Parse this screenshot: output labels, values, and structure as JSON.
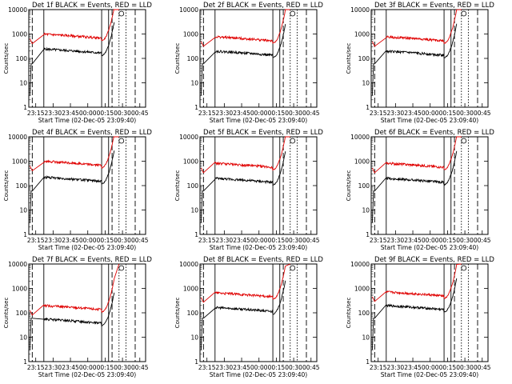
{
  "chart_data": [
    {
      "type": "line",
      "title": "Det 1f BLACK = Events, RED = LLD",
      "xlabel": "Start Time (02-Dec-05 23:09:40)",
      "ylabel": "Counts/sec",
      "x_tick_labels": [
        "23:15",
        "23:30",
        "23:45",
        "00:00",
        "00:15",
        "00:30",
        "00:45"
      ],
      "y_tick_labels": [
        "1",
        "10",
        "100",
        "1000",
        "10000"
      ],
      "ylim": [
        1,
        10000
      ],
      "y_scale": "log",
      "series": [
        {
          "color": "#000000",
          "level": 220
        },
        {
          "color": "#e00000",
          "level": 900
        }
      ],
      "vertical_lines": [
        {
          "x": "23:12",
          "style": "dashed"
        },
        {
          "x": "23:22",
          "style": "solid"
        },
        {
          "x": "00:12",
          "style": "solid"
        },
        {
          "x": "00:18",
          "style": "solid"
        },
        {
          "x": "00:21",
          "style": "dashed"
        },
        {
          "x": "00:27",
          "style": "dotted"
        },
        {
          "x": "00:33",
          "style": "dotted"
        },
        {
          "x": "00:41",
          "style": "dashed"
        }
      ]
    },
    {
      "type": "line",
      "title": "Det 2f BLACK = Events, RED = LLD",
      "xlabel": "Start Time (02-Dec-05 23:09:40)",
      "ylabel": "Counts/sec",
      "x_tick_labels": [
        "23:15",
        "23:30",
        "23:45",
        "00:00",
        "00:15",
        "00:30",
        "00:45"
      ],
      "y_tick_labels": [
        "1",
        "10",
        "100",
        "1000",
        "10000"
      ],
      "ylim": [
        1,
        10000
      ],
      "y_scale": "log",
      "series": [
        {
          "color": "#000000",
          "level": 180
        },
        {
          "color": "#e00000",
          "level": 700
        }
      ],
      "vertical_lines": [
        {
          "x": "23:12",
          "style": "dashed"
        },
        {
          "x": "23:22",
          "style": "solid"
        },
        {
          "x": "00:12",
          "style": "solid"
        },
        {
          "x": "00:18",
          "style": "solid"
        },
        {
          "x": "00:21",
          "style": "dashed"
        },
        {
          "x": "00:27",
          "style": "dotted"
        },
        {
          "x": "00:33",
          "style": "dotted"
        },
        {
          "x": "00:41",
          "style": "dashed"
        }
      ]
    },
    {
      "type": "line",
      "title": "Det 3f BLACK = Events, RED = LLD",
      "xlabel": "Start Time (02-Dec-05 23:09:40)",
      "ylabel": "Counts/sec",
      "x_tick_labels": [
        "23:15",
        "23:30",
        "23:45",
        "00:00",
        "00:15",
        "00:30",
        "00:45"
      ],
      "y_tick_labels": [
        "1",
        "10",
        "100",
        "1000",
        "10000"
      ],
      "ylim": [
        1,
        10000
      ],
      "y_scale": "log",
      "series": [
        {
          "color": "#000000",
          "level": 180
        },
        {
          "color": "#e00000",
          "level": 700
        }
      ],
      "vertical_lines": [
        {
          "x": "23:12",
          "style": "dashed"
        },
        {
          "x": "23:22",
          "style": "solid"
        },
        {
          "x": "00:12",
          "style": "solid"
        },
        {
          "x": "00:18",
          "style": "solid"
        },
        {
          "x": "00:21",
          "style": "dashed"
        },
        {
          "x": "00:27",
          "style": "dotted"
        },
        {
          "x": "00:33",
          "style": "dotted"
        },
        {
          "x": "00:41",
          "style": "dashed"
        }
      ]
    },
    {
      "type": "line",
      "title": "Det 4f BLACK = Events, RED = LLD",
      "xlabel": "Start Time (02-Dec-05 23:09:40)",
      "ylabel": "Counts/sec",
      "x_tick_labels": [
        "23:15",
        "23:30",
        "23:45",
        "00:00",
        "00:15",
        "00:30",
        "00:45"
      ],
      "y_tick_labels": [
        "1",
        "10",
        "100",
        "1000",
        "10000"
      ],
      "ylim": [
        1,
        10000
      ],
      "y_scale": "log",
      "series": [
        {
          "color": "#000000",
          "level": 200
        },
        {
          "color": "#e00000",
          "level": 900
        }
      ],
      "vertical_lines": [
        {
          "x": "23:12",
          "style": "dashed"
        },
        {
          "x": "23:22",
          "style": "solid"
        },
        {
          "x": "00:12",
          "style": "solid"
        },
        {
          "x": "00:18",
          "style": "solid"
        },
        {
          "x": "00:21",
          "style": "dashed"
        },
        {
          "x": "00:27",
          "style": "dotted"
        },
        {
          "x": "00:33",
          "style": "dotted"
        },
        {
          "x": "00:41",
          "style": "dashed"
        }
      ]
    },
    {
      "type": "line",
      "title": "Det 5f BLACK = Events, RED = LLD",
      "xlabel": "Start Time (02-Dec-05 23:09:40)",
      "ylabel": "Counts/sec",
      "x_tick_labels": [
        "23:15",
        "23:30",
        "23:45",
        "00:00",
        "00:15",
        "00:30",
        "00:45"
      ],
      "y_tick_labels": [
        "1",
        "10",
        "100",
        "1000",
        "10000"
      ],
      "ylim": [
        1,
        10000
      ],
      "y_scale": "log",
      "series": [
        {
          "color": "#000000",
          "level": 180
        },
        {
          "color": "#e00000",
          "level": 750
        }
      ],
      "vertical_lines": [
        {
          "x": "23:12",
          "style": "dashed"
        },
        {
          "x": "23:22",
          "style": "solid"
        },
        {
          "x": "00:12",
          "style": "solid"
        },
        {
          "x": "00:18",
          "style": "solid"
        },
        {
          "x": "00:21",
          "style": "dashed"
        },
        {
          "x": "00:27",
          "style": "dotted"
        },
        {
          "x": "00:33",
          "style": "dotted"
        },
        {
          "x": "00:41",
          "style": "dashed"
        }
      ]
    },
    {
      "type": "line",
      "title": "Det 6f BLACK = Events, RED = LLD",
      "xlabel": "Start Time (02-Dec-05 23:09:40)",
      "ylabel": "Counts/sec",
      "x_tick_labels": [
        "23:15",
        "23:30",
        "23:45",
        "00:00",
        "00:15",
        "00:30",
        "00:45"
      ],
      "y_tick_labels": [
        "1",
        "10",
        "100",
        "1000",
        "10000"
      ],
      "ylim": [
        1,
        10000
      ],
      "y_scale": "log",
      "series": [
        {
          "color": "#000000",
          "level": 180
        },
        {
          "color": "#e00000",
          "level": 750
        }
      ],
      "vertical_lines": [
        {
          "x": "23:12",
          "style": "dashed"
        },
        {
          "x": "23:22",
          "style": "solid"
        },
        {
          "x": "00:12",
          "style": "solid"
        },
        {
          "x": "00:18",
          "style": "solid"
        },
        {
          "x": "00:21",
          "style": "dashed"
        },
        {
          "x": "00:27",
          "style": "dotted"
        },
        {
          "x": "00:33",
          "style": "dotted"
        },
        {
          "x": "00:41",
          "style": "dashed"
        }
      ]
    },
    {
      "type": "line",
      "title": "Det 7f BLACK = Events, RED = LLD",
      "xlabel": "Start Time (02-Dec-05 23:09:40)",
      "ylabel": "Counts/sec",
      "x_tick_labels": [
        "23:15",
        "23:30",
        "23:45",
        "00:00",
        "00:15",
        "00:30",
        "00:45"
      ],
      "y_tick_labels": [
        "1",
        "10",
        "100",
        "1000",
        "10000"
      ],
      "ylim": [
        1,
        10000
      ],
      "y_scale": "log",
      "series": [
        {
          "color": "#000000",
          "level": 50
        },
        {
          "color": "#e00000",
          "level": 180
        }
      ],
      "vertical_lines": [
        {
          "x": "23:12",
          "style": "dashed"
        },
        {
          "x": "23:22",
          "style": "solid"
        },
        {
          "x": "00:12",
          "style": "solid"
        },
        {
          "x": "00:18",
          "style": "solid"
        },
        {
          "x": "00:21",
          "style": "dashed"
        },
        {
          "x": "00:27",
          "style": "dotted"
        },
        {
          "x": "00:33",
          "style": "dotted"
        },
        {
          "x": "00:41",
          "style": "dashed"
        }
      ]
    },
    {
      "type": "line",
      "title": "Det 8f BLACK = Events, RED = LLD",
      "xlabel": "Start Time (02-Dec-05 23:09:40)",
      "ylabel": "Counts/sec",
      "x_tick_labels": [
        "23:15",
        "23:30",
        "23:45",
        "00:00",
        "00:15",
        "00:30",
        "00:45"
      ],
      "y_tick_labels": [
        "1",
        "10",
        "100",
        "1000",
        "10000"
      ],
      "ylim": [
        1,
        10000
      ],
      "y_scale": "log",
      "series": [
        {
          "color": "#000000",
          "level": 150
        },
        {
          "color": "#e00000",
          "level": 600
        }
      ],
      "vertical_lines": [
        {
          "x": "23:12",
          "style": "dashed"
        },
        {
          "x": "23:22",
          "style": "solid"
        },
        {
          "x": "00:12",
          "style": "solid"
        },
        {
          "x": "00:18",
          "style": "solid"
        },
        {
          "x": "00:21",
          "style": "dashed"
        },
        {
          "x": "00:27",
          "style": "dotted"
        },
        {
          "x": "00:33",
          "style": "dotted"
        },
        {
          "x": "00:41",
          "style": "dashed"
        }
      ]
    },
    {
      "type": "line",
      "title": "Det 9f BLACK = Events, RED = LLD",
      "xlabel": "Start Time (02-Dec-05 23:09:40)",
      "ylabel": "Counts/sec",
      "x_tick_labels": [
        "23:15",
        "23:30",
        "23:45",
        "00:00",
        "00:15",
        "00:30",
        "00:45"
      ],
      "y_tick_labels": [
        "1",
        "10",
        "100",
        "1000",
        "10000"
      ],
      "ylim": [
        1,
        10000
      ],
      "y_scale": "log",
      "series": [
        {
          "color": "#000000",
          "level": 180
        },
        {
          "color": "#e00000",
          "level": 650
        }
      ],
      "vertical_lines": [
        {
          "x": "23:12",
          "style": "dashed"
        },
        {
          "x": "23:22",
          "style": "solid"
        },
        {
          "x": "00:12",
          "style": "solid"
        },
        {
          "x": "00:18",
          "style": "solid"
        },
        {
          "x": "00:21",
          "style": "dashed"
        },
        {
          "x": "00:27",
          "style": "dotted"
        },
        {
          "x": "00:33",
          "style": "dotted"
        },
        {
          "x": "00:41",
          "style": "dashed"
        }
      ]
    }
  ]
}
